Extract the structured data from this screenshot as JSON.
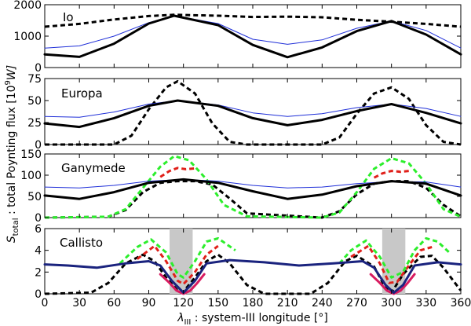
{
  "figure": {
    "ylabel": "S_total : total Poynting flux [10^9 W]",
    "ylabel_main": "S",
    "ylabel_sub": "total",
    "ylabel_rest": " : total Poynting flux [10",
    "ylabel_exp": "9",
    "ylabel_unit": "W]",
    "xlabel_main": "λ",
    "xlabel_sub": "III",
    "xlabel_rest": " : system-III longitude [°]"
  },
  "chart_data": [
    {
      "type": "line",
      "panel": "Io",
      "title": "Io",
      "xlim": [
        0,
        360
      ],
      "ylim": [
        0,
        2000
      ],
      "yticks": [
        0,
        1000,
        2000
      ],
      "xticks": [
        0,
        30,
        60,
        90,
        120,
        150,
        180,
        210,
        240,
        270,
        300,
        330,
        360
      ],
      "xticklabels": [
        "0",
        "30",
        "60",
        "90",
        "120",
        "150",
        "180",
        "210",
        "240",
        "270",
        "300",
        "330",
        "360"
      ],
      "series": [
        {
          "name": "dashed black",
          "color": "#000000",
          "style": "dashed",
          "x": [
            0,
            30,
            60,
            90,
            112,
            150,
            180,
            210,
            240,
            270,
            300,
            330,
            360
          ],
          "y": [
            1300,
            1390,
            1530,
            1640,
            1680,
            1650,
            1610,
            1620,
            1600,
            1520,
            1460,
            1390,
            1300
          ]
        },
        {
          "name": "thin blue",
          "color": "#1f2fd8",
          "style": "solid",
          "x": [
            0,
            30,
            60,
            90,
            112,
            150,
            180,
            210,
            240,
            270,
            300,
            330,
            360
          ],
          "y": [
            620,
            690,
            1000,
            1430,
            1650,
            1400,
            900,
            740,
            880,
            1250,
            1480,
            1180,
            620
          ]
        },
        {
          "name": "thick black",
          "color": "#000000",
          "style": "solid",
          "x": [
            0,
            30,
            60,
            90,
            112,
            150,
            180,
            210,
            240,
            270,
            300,
            330,
            360
          ],
          "y": [
            420,
            340,
            760,
            1400,
            1650,
            1350,
            720,
            330,
            640,
            1160,
            1480,
            1050,
            420
          ]
        }
      ]
    },
    {
      "type": "line",
      "panel": "Europa",
      "title": "Europa",
      "xlim": [
        0,
        360
      ],
      "ylim": [
        0,
        75
      ],
      "yticks": [
        0,
        25,
        50,
        75
      ],
      "series": [
        {
          "name": "dashed black",
          "color": "#000000",
          "style": "dashed",
          "x": [
            0,
            60,
            75,
            90,
            105,
            115,
            130,
            145,
            160,
            175,
            240,
            255,
            270,
            285,
            300,
            315,
            330,
            345,
            360
          ],
          "y": [
            0,
            0,
            10,
            40,
            65,
            72,
            58,
            24,
            3,
            0,
            0,
            8,
            35,
            58,
            65,
            52,
            22,
            3,
            0
          ]
        },
        {
          "name": "thin blue",
          "color": "#1f2fd8",
          "style": "solid",
          "x": [
            0,
            30,
            60,
            90,
            115,
            150,
            180,
            210,
            240,
            270,
            300,
            330,
            360
          ],
          "y": [
            32,
            31,
            37,
            46,
            50,
            45,
            36,
            32,
            35,
            42,
            46,
            41,
            32
          ]
        },
        {
          "name": "thick black",
          "color": "#000000",
          "style": "solid",
          "x": [
            0,
            30,
            60,
            90,
            115,
            150,
            180,
            210,
            240,
            270,
            300,
            330,
            360
          ],
          "y": [
            24,
            20,
            30,
            44,
            50,
            44,
            30,
            22,
            28,
            38,
            46,
            36,
            24
          ]
        }
      ]
    },
    {
      "type": "line",
      "panel": "Ganymede",
      "title": "Ganymede",
      "xlim": [
        0,
        360
      ],
      "ylim": [
        0,
        150
      ],
      "yticks": [
        0,
        50,
        100,
        150
      ],
      "series": [
        {
          "name": "dashed black",
          "color": "#000000",
          "style": "dashed",
          "x": [
            0,
            55,
            70,
            85,
            100,
            115,
            130,
            145,
            160,
            175,
            240,
            255,
            270,
            285,
            300,
            315,
            330,
            345,
            360
          ],
          "y": [
            0,
            2,
            18,
            60,
            82,
            86,
            86,
            78,
            45,
            10,
            0,
            15,
            55,
            80,
            86,
            86,
            70,
            30,
            3
          ]
        },
        {
          "name": "dashed red",
          "color": "#e0201a",
          "style": "dashed",
          "x": [
            100,
            108,
            115,
            122,
            130
          ],
          "y": [
            96,
            110,
            117,
            114,
            116
          ]
        },
        {
          "name": "dashed red 2",
          "color": "#e0201a",
          "style": "dashed",
          "x": [
            285,
            292,
            300,
            308,
            315
          ],
          "y": [
            94,
            104,
            110,
            108,
            110
          ]
        },
        {
          "name": "dashed green",
          "color": "#2cee2c",
          "style": "dashed",
          "x": [
            0,
            55,
            70,
            85,
            100,
            112,
            125,
            140,
            155,
            175,
            240,
            255,
            270,
            285,
            300,
            315,
            330,
            345,
            360
          ],
          "y": [
            0,
            2,
            20,
            70,
            120,
            145,
            135,
            90,
            30,
            3,
            0,
            12,
            60,
            115,
            140,
            128,
            80,
            20,
            2
          ]
        },
        {
          "name": "thin blue",
          "color": "#1f2fd8",
          "style": "solid",
          "x": [
            0,
            30,
            60,
            90,
            120,
            150,
            180,
            210,
            240,
            270,
            300,
            330,
            360
          ],
          "y": [
            72,
            70,
            76,
            86,
            90,
            86,
            76,
            70,
            72,
            80,
            85,
            84,
            72
          ]
        },
        {
          "name": "thick black",
          "color": "#000000",
          "style": "solid",
          "x": [
            0,
            30,
            60,
            90,
            120,
            150,
            180,
            210,
            240,
            270,
            300,
            330,
            360
          ],
          "y": [
            52,
            44,
            60,
            82,
            90,
            82,
            62,
            44,
            54,
            74,
            86,
            80,
            52
          ]
        }
      ]
    },
    {
      "type": "line",
      "panel": "Callisto",
      "title": "Callisto",
      "xlim": [
        0,
        360
      ],
      "ylim": [
        0,
        6
      ],
      "yticks": [
        0,
        2,
        4,
        6
      ],
      "shaded_x_ranges": [
        [
          108,
          128
        ],
        [
          292,
          312
        ]
      ],
      "series": [
        {
          "name": "dashed black",
          "color": "#000000",
          "style": "dashed",
          "x": [
            0,
            40,
            55,
            70,
            85,
            95,
            105,
            115,
            120,
            130,
            140,
            150,
            160,
            175,
            190,
            230,
            245,
            260,
            270,
            285,
            295,
            300,
            310,
            325,
            335,
            345,
            360
          ],
          "y": [
            0,
            0.1,
            1,
            2.8,
            3.6,
            3.0,
            1.5,
            0.3,
            0.2,
            1.5,
            3.0,
            3.6,
            2.8,
            0.8,
            0,
            0,
            1.0,
            3.0,
            3.5,
            2.5,
            0.5,
            0.1,
            1.8,
            3.4,
            3.5,
            2.4,
            0.3
          ]
        },
        {
          "name": "dashed red",
          "color": "#e0201a",
          "style": "dashed",
          "x": [
            80,
            95,
            105,
            115,
            120,
            130,
            140,
            150
          ],
          "y": [
            3.2,
            4.4,
            3.0,
            1.2,
            0.9,
            2.0,
            3.6,
            4.4
          ]
        },
        {
          "name": "dashed red 2",
          "color": "#e0201a",
          "style": "dashed",
          "x": [
            265,
            280,
            290,
            298,
            305,
            315,
            325,
            335
          ],
          "y": [
            3.4,
            4.4,
            2.8,
            1.0,
            1.1,
            2.6,
            4.0,
            4.3
          ]
        },
        {
          "name": "dashed green",
          "color": "#2cee2c",
          "style": "dashed",
          "x": [
            65,
            80,
            92,
            105,
            115,
            120,
            130,
            140,
            150,
            165
          ],
          "y": [
            2.8,
            4.3,
            5.0,
            3.8,
            1.8,
            1.5,
            3.0,
            4.8,
            5.1,
            4.0
          ]
        },
        {
          "name": "dashed green 2",
          "color": "#2cee2c",
          "style": "dashed",
          "x": [
            255,
            265,
            278,
            290,
            300,
            310,
            320,
            330,
            340,
            350
          ],
          "y": [
            2.8,
            4.0,
            4.9,
            3.4,
            1.5,
            2.0,
            4.0,
            5.1,
            4.8,
            3.8
          ]
        },
        {
          "name": "thick magenta",
          "color": "#d81b60",
          "style": "solid",
          "x": [
            100,
            108,
            114,
            120,
            126,
            132,
            138
          ],
          "y": [
            1.8,
            1.0,
            0.3,
            0.0,
            0.3,
            1.0,
            1.8
          ]
        },
        {
          "name": "thick magenta 2",
          "color": "#d81b60",
          "style": "solid",
          "x": [
            282,
            290,
            296,
            302,
            308,
            314,
            320
          ],
          "y": [
            1.8,
            1.0,
            0.3,
            0.0,
            0.3,
            1.0,
            1.8
          ]
        },
        {
          "name": "thin blue",
          "color": "#1f2fd8",
          "style": "solid",
          "x": [
            0,
            20,
            45,
            70,
            90,
            100,
            110,
            120,
            130,
            140,
            160,
            190,
            220,
            250,
            275,
            285,
            295,
            302,
            310,
            320,
            340,
            360
          ],
          "y": [
            2.7,
            2.6,
            2.4,
            2.8,
            3.0,
            2.6,
            1.2,
            0.1,
            1.2,
            2.8,
            3.1,
            2.9,
            2.6,
            2.8,
            3.0,
            2.4,
            0.8,
            0.1,
            0.8,
            2.6,
            2.9,
            2.7
          ]
        },
        {
          "name": "thick navy",
          "color": "#1a237e",
          "style": "solid",
          "x": [
            0,
            20,
            45,
            70,
            90,
            100,
            110,
            120,
            130,
            140,
            160,
            190,
            220,
            250,
            275,
            285,
            295,
            302,
            310,
            320,
            340,
            360
          ],
          "y": [
            2.7,
            2.6,
            2.4,
            2.8,
            3.0,
            2.6,
            1.2,
            0.1,
            1.2,
            2.8,
            3.1,
            2.9,
            2.6,
            2.8,
            3.0,
            2.4,
            0.8,
            0.1,
            0.8,
            2.6,
            2.9,
            2.7
          ]
        }
      ]
    }
  ]
}
